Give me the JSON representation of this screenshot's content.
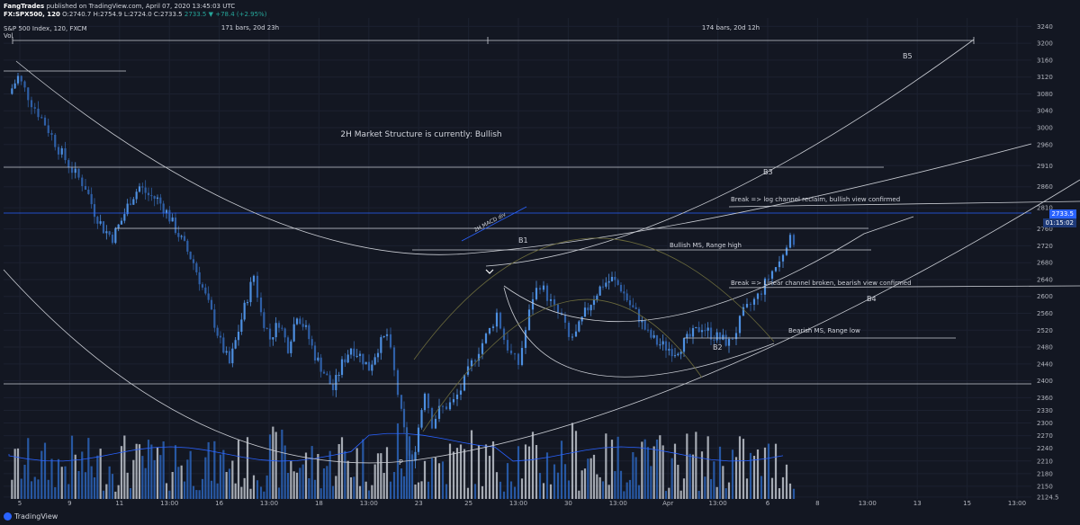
{
  "header": {
    "publisher": "FangTrades",
    "published_text": "published on TradingView.com, April 07, 2020 13:45:03 UTC",
    "symbol": "FX:SPX500, 120",
    "ohlc": "O:2740.7 H:2754.9 L:2724.0 C:2733.5",
    "change": "2733.5 ▼ +78.4 (+2.95%)",
    "instrument": "S&P 500 Index, 120, FXCM",
    "vol_label": "Vol"
  },
  "footer": {
    "logo_text": "TradingView"
  },
  "colors": {
    "bg": "#131722",
    "up": "#4d8fe0",
    "down": "#2f5fa6",
    "vol_up": "#c0c4cc",
    "vol_down": "#2b63b8",
    "line": "#c9ccd3",
    "accent": "#2962ff"
  },
  "chart_data": {
    "type": "candlestick",
    "price_axis": {
      "min": 2120,
      "max": 3260,
      "ticks": [
        3240,
        3200,
        3160,
        3120,
        3080,
        3040,
        3000,
        2960,
        2910,
        2860,
        2810,
        2760,
        2720,
        2680,
        2640,
        2600,
        2560,
        2520,
        2480,
        2440,
        2400,
        2360,
        2330,
        2300,
        2270,
        2240,
        2210,
        2180,
        2150,
        2124.5
      ]
    },
    "time_axis": [
      "5",
      "9",
      "11",
      "13:00",
      "16",
      "13:00",
      "18",
      "13:00",
      "23",
      "25",
      "13:00",
      "30",
      "13:00",
      "Apr",
      "13:00",
      "6",
      "8",
      "13:00",
      "13",
      "15",
      "13:00"
    ],
    "last_price": "2733.5",
    "countdown": "01:15:02",
    "measurements": [
      {
        "label": "171 bars, 20d 23h"
      },
      {
        "label": "174 bars, 20d 12h"
      }
    ],
    "annotations": [
      {
        "text": "2H Market Structure is currently: Bullish"
      },
      {
        "text": "2H MACD div"
      },
      {
        "text": "B1"
      },
      {
        "text": "B2"
      },
      {
        "text": "B3"
      },
      {
        "text": "B4"
      },
      {
        "text": "B5"
      },
      {
        "text": "P"
      },
      {
        "text": "Bullish MS, Range high"
      },
      {
        "text": "Bearish MS, Range low"
      },
      {
        "text": "Break => log channel reclaim, bullish view confirmed"
      },
      {
        "text": "Break => Linear channel broken, bearish view confirmed"
      }
    ],
    "price_path": [
      [
        0,
        3080
      ],
      [
        10,
        3120
      ],
      [
        25,
        3060
      ],
      [
        40,
        3010
      ],
      [
        55,
        2950
      ],
      [
        70,
        2900
      ],
      [
        85,
        2860
      ],
      [
        95,
        2800
      ],
      [
        105,
        2760
      ],
      [
        115,
        2740
      ],
      [
        125,
        2780
      ],
      [
        135,
        2830
      ],
      [
        145,
        2860
      ],
      [
        155,
        2840
      ],
      [
        165,
        2830
      ],
      [
        175,
        2800
      ],
      [
        185,
        2760
      ],
      [
        195,
        2720
      ],
      [
        205,
        2680
      ],
      [
        215,
        2620
      ],
      [
        225,
        2560
      ],
      [
        235,
        2490
      ],
      [
        245,
        2440
      ],
      [
        255,
        2520
      ],
      [
        265,
        2600
      ],
      [
        272,
        2650
      ],
      [
        280,
        2560
      ],
      [
        290,
        2500
      ],
      [
        300,
        2540
      ],
      [
        310,
        2480
      ],
      [
        320,
        2560
      ],
      [
        330,
        2520
      ],
      [
        340,
        2460
      ],
      [
        350,
        2420
      ],
      [
        360,
        2380
      ],
      [
        370,
        2440
      ],
      [
        380,
        2480
      ],
      [
        390,
        2460
      ],
      [
        400,
        2430
      ],
      [
        410,
        2480
      ],
      [
        420,
        2510
      ],
      [
        428,
        2420
      ],
      [
        436,
        2320
      ],
      [
        442,
        2240
      ],
      [
        448,
        2200
      ],
      [
        455,
        2290
      ],
      [
        462,
        2380
      ],
      [
        470,
        2300
      ],
      [
        478,
        2330
      ],
      [
        486,
        2340
      ],
      [
        494,
        2350
      ],
      [
        502,
        2380
      ],
      [
        510,
        2420
      ],
      [
        518,
        2460
      ],
      [
        526,
        2490
      ],
      [
        534,
        2520
      ],
      [
        542,
        2560
      ],
      [
        550,
        2500
      ],
      [
        558,
        2460
      ],
      [
        566,
        2440
      ],
      [
        574,
        2520
      ],
      [
        582,
        2600
      ],
      [
        590,
        2630
      ],
      [
        598,
        2600
      ],
      [
        606,
        2570
      ],
      [
        614,
        2550
      ],
      [
        622,
        2500
      ],
      [
        630,
        2510
      ],
      [
        640,
        2560
      ],
      [
        650,
        2600
      ],
      [
        660,
        2630
      ],
      [
        670,
        2640
      ],
      [
        680,
        2620
      ],
      [
        690,
        2580
      ],
      [
        700,
        2550
      ],
      [
        710,
        2510
      ],
      [
        720,
        2490
      ],
      [
        730,
        2480
      ],
      [
        740,
        2470
      ],
      [
        750,
        2490
      ],
      [
        760,
        2510
      ],
      [
        770,
        2530
      ],
      [
        780,
        2510
      ],
      [
        790,
        2500
      ],
      [
        800,
        2490
      ],
      [
        808,
        2520
      ],
      [
        816,
        2560
      ],
      [
        824,
        2580
      ],
      [
        832,
        2600
      ],
      [
        840,
        2630
      ],
      [
        848,
        2660
      ],
      [
        856,
        2680
      ],
      [
        864,
        2730
      ],
      [
        872,
        2733.5
      ]
    ],
    "volume_profile": [
      0.22,
      0.35,
      0.3,
      0.25,
      0.4,
      0.33,
      0.28,
      0.45,
      0.3,
      0.38,
      0.26,
      0.5,
      0.34,
      0.29,
      0.42,
      0.36,
      0.31,
      0.55,
      0.4,
      0.3,
      0.28,
      0.62,
      0.45,
      0.35,
      0.4,
      0.72,
      0.5,
      0.38,
      0.46,
      0.58,
      0.4,
      0.36,
      0.66,
      0.48,
      0.35,
      0.55,
      0.7,
      0.6,
      0.42,
      0.5,
      0.38,
      0.45,
      0.3,
      0.52,
      0.4,
      0.35,
      0.48,
      0.33,
      0.4,
      0.28
    ]
  }
}
